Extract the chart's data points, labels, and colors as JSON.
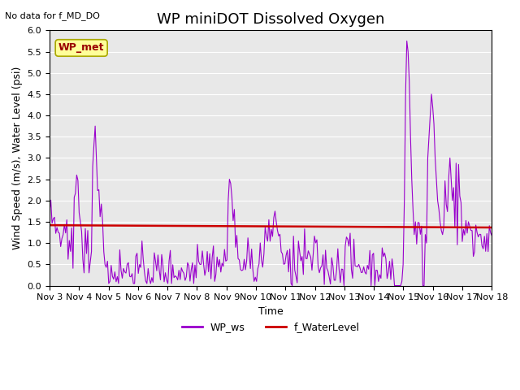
{
  "title": "WP miniDOT Dissolved Oxygen",
  "xlabel": "Time",
  "ylabel": "Wind Speed (m/s), Water Level (psi)",
  "no_data_text": "No data for f_MD_DO",
  "wp_met_label": "WP_met",
  "ylim": [
    0.0,
    6.0
  ],
  "yticks": [
    0.0,
    0.5,
    1.0,
    1.5,
    2.0,
    2.5,
    3.0,
    3.5,
    4.0,
    4.5,
    5.0,
    5.5,
    6.0
  ],
  "xtick_labels": [
    "Nov 3",
    "Nov 4",
    "Nov 5",
    "Nov 6",
    "Nov 7",
    "Nov 8",
    "Nov 9",
    "Nov 10",
    "Nov 11",
    "Nov 12",
    "Nov 13",
    "Nov 14",
    "Nov 15",
    "Nov 16",
    "Nov 17",
    "Nov 18"
  ],
  "water_level_value": 1.38,
  "wp_ws_color": "#9900cc",
  "water_level_color": "#cc0000",
  "background_color": "#e8e8e8",
  "legend_labels": [
    "WP_ws",
    "f_WaterLevel"
  ],
  "wp_met_box_color": "#ffff99",
  "wp_met_text_color": "#990000",
  "title_fontsize": 13,
  "axis_fontsize": 9,
  "tick_fontsize": 8
}
